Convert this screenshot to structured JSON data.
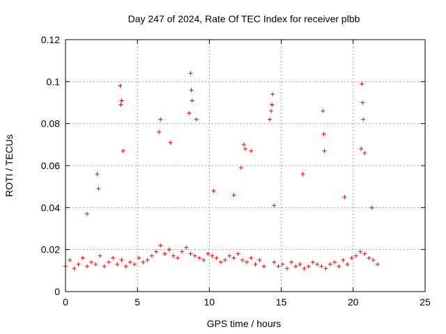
{
  "chart_data": {
    "type": "scatter",
    "title": "Day 247 of 2024, Rate Of TEC Index for receiver plbb",
    "xlabel": "GPS time / hours",
    "ylabel": "ROTI / TECUs",
    "xlim": [
      0,
      25
    ],
    "ylim": [
      0,
      0.12
    ],
    "xticks": [
      "0",
      "5",
      "10",
      "15",
      "20",
      "25"
    ],
    "yticks": [
      "0",
      "0.02",
      "0.04",
      "0.06",
      "0.08",
      "0.1",
      "0.12"
    ],
    "grid": true,
    "legend": "none",
    "marker": "+",
    "color": "#ff0000",
    "data_gap_hours": [
      13.9,
      14.4
    ],
    "series": [
      {
        "x": [
          0.0,
          0.3,
          0.6,
          0.9,
          1.2,
          1.5,
          1.8,
          2.1,
          2.4,
          2.7,
          3.0,
          3.3,
          3.6,
          3.9,
          4.2,
          4.5,
          4.8,
          5.1,
          5.4,
          5.7,
          6.0,
          6.3,
          6.6,
          6.9,
          7.2,
          7.5,
          7.8,
          8.1,
          8.4,
          8.7,
          9.0,
          9.3,
          9.6,
          9.9,
          10.2,
          10.5,
          10.8,
          11.1,
          11.4,
          11.7,
          12.0,
          12.3,
          12.6,
          12.9,
          13.2,
          13.5,
          13.8,
          14.5,
          14.8,
          15.1,
          15.4,
          15.7,
          16.0,
          16.3,
          16.6,
          16.9,
          17.2,
          17.5,
          17.8,
          18.1,
          18.4,
          18.7,
          19.0,
          19.3,
          19.6,
          19.9,
          20.2,
          20.5,
          20.8,
          21.1,
          21.4,
          21.7,
          3.8,
          3.9,
          3.85,
          4.0,
          6.6,
          6.5,
          7.3,
          8.7,
          8.75,
          8.8,
          8.6,
          9.1,
          12.4,
          12.5,
          12.9,
          14.2,
          14.3,
          14.35,
          14.4,
          17.9,
          17.95,
          18.0,
          20.6,
          20.65,
          20.7,
          20.55,
          20.8,
          2.2,
          2.3,
          1.5,
          10.3,
          11.7,
          12.2,
          14.5,
          16.5,
          19.4,
          21.3
        ],
        "y": [
          0.012,
          0.015,
          0.011,
          0.013,
          0.016,
          0.012,
          0.014,
          0.013,
          0.017,
          0.012,
          0.014,
          0.016,
          0.013,
          0.015,
          0.012,
          0.014,
          0.013,
          0.016,
          0.014,
          0.015,
          0.017,
          0.019,
          0.022,
          0.018,
          0.02,
          0.017,
          0.016,
          0.019,
          0.021,
          0.018,
          0.017,
          0.016,
          0.015,
          0.018,
          0.017,
          0.016,
          0.014,
          0.015,
          0.017,
          0.016,
          0.018,
          0.015,
          0.014,
          0.016,
          0.013,
          0.015,
          0.012,
          0.014,
          0.012,
          0.013,
          0.011,
          0.014,
          0.012,
          0.013,
          0.011,
          0.012,
          0.014,
          0.013,
          0.012,
          0.011,
          0.013,
          0.014,
          0.012,
          0.015,
          0.013,
          0.016,
          0.017,
          0.019,
          0.018,
          0.016,
          0.015,
          0.013,
          0.098,
          0.091,
          0.089,
          0.067,
          0.082,
          0.076,
          0.071,
          0.104,
          0.096,
          0.091,
          0.085,
          0.082,
          0.07,
          0.068,
          0.067,
          0.082,
          0.086,
          0.089,
          0.094,
          0.086,
          0.075,
          0.067,
          0.099,
          0.09,
          0.082,
          0.068,
          0.066,
          0.056,
          0.049,
          0.037,
          0.048,
          0.046,
          0.059,
          0.041,
          0.056,
          0.045,
          0.04
        ]
      }
    ]
  }
}
